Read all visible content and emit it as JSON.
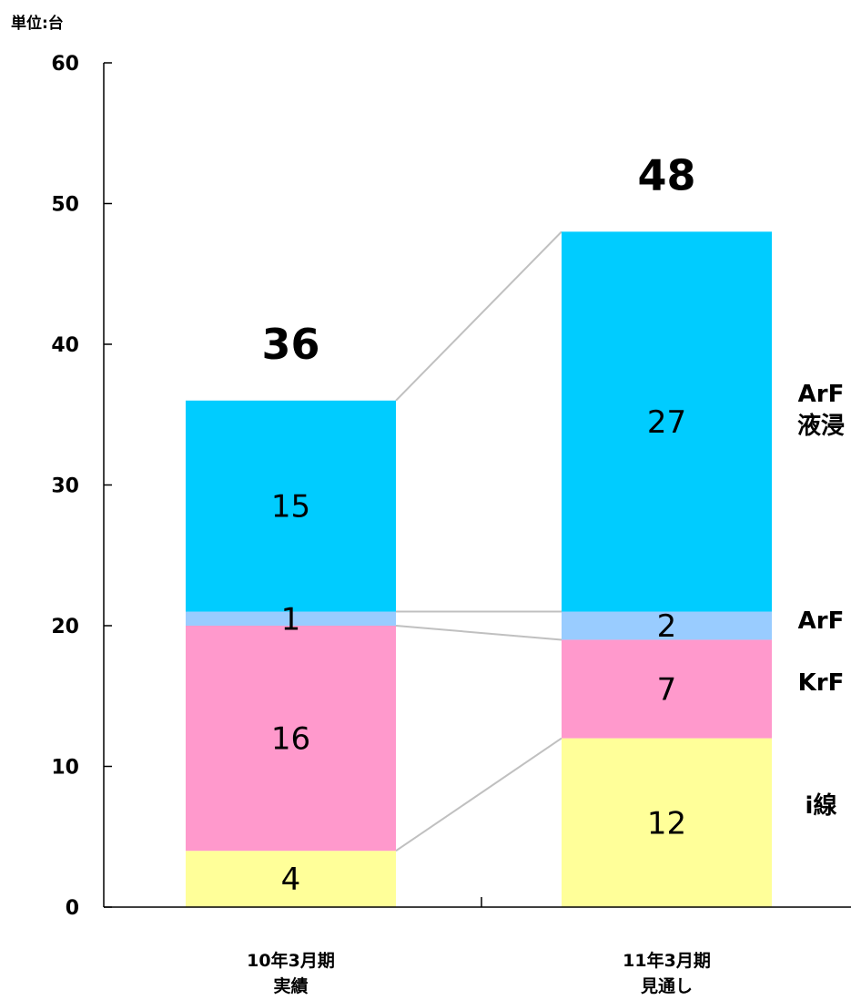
{
  "chart_data": {
    "type": "bar",
    "stacked": true,
    "unit_label": "単位:台",
    "categories": [
      [
        "10年3月期",
        "実績"
      ],
      [
        "11年3月期",
        "見通し"
      ]
    ],
    "ylim": [
      0,
      60
    ],
    "yticks": [
      0,
      10,
      20,
      30,
      40,
      50,
      60
    ],
    "series": [
      {
        "name": "i線",
        "color": "#ffff99",
        "values": [
          4,
          12
        ]
      },
      {
        "name": "KrF",
        "color": "#ff99cc",
        "values": [
          16,
          7
        ]
      },
      {
        "name": "ArF",
        "color": "#99ccff",
        "values": [
          1,
          2
        ]
      },
      {
        "name": [
          "ArF",
          "液浸"
        ],
        "color": "#00ccff",
        "values": [
          15,
          27
        ]
      }
    ],
    "totals": [
      36,
      48
    ],
    "connector_color": "#c0c0c0",
    "grid": false,
    "legend": "right, aligned to segments"
  }
}
